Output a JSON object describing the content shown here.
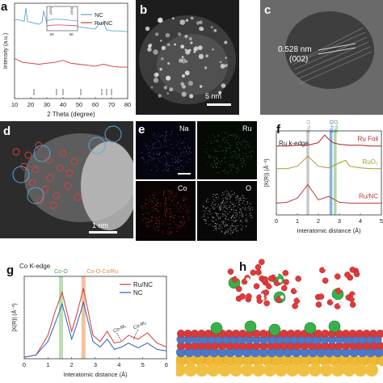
{
  "figure": {
    "labels": {
      "a": "a",
      "b": "b",
      "c": "c",
      "d": "d",
      "e": "e",
      "f": "f",
      "g": "g",
      "h": "h"
    },
    "scalebars": {
      "b": "5 nm",
      "c_spacing": "0.528 nm",
      "c_plane": "(002)",
      "d": "1 nm"
    }
  },
  "map_labels": [
    "Na",
    "Ru",
    "Co",
    "O"
  ],
  "colors": {
    "nc": "#5aa7d8",
    "runc": "#d23a3a",
    "rufoil": "#b01e1e",
    "ruo2": "#a89a2a",
    "runc_f": "#c0393b",
    "band_gray": "#bbbbbb",
    "band_blue": "#6f9fd6",
    "band_green": "#9bd08f",
    "band_orange": "#f4b183"
  },
  "chart_data": [
    {
      "id": "a",
      "type": "line",
      "xlabel": "2 Theta (degree)",
      "ylabel": "Intensity (a.u.)",
      "xlim": [
        10,
        80
      ],
      "xticks": [
        10,
        20,
        30,
        40,
        50,
        60,
        70,
        80
      ],
      "legend_position": "top-right",
      "series": [
        {
          "name": "NC",
          "color": "#5aa7d8",
          "x": [
            10,
            14,
            16,
            17,
            18,
            20,
            25,
            27,
            28,
            30,
            32,
            33,
            35,
            36,
            40,
            45,
            50,
            55,
            60,
            62,
            65,
            67,
            70,
            75,
            80
          ],
          "y": [
            0.83,
            0.82,
            0.81,
            0.95,
            0.81,
            0.8,
            0.78,
            0.8,
            0.92,
            0.79,
            0.86,
            0.79,
            0.87,
            0.78,
            0.76,
            0.8,
            0.75,
            0.74,
            0.73,
            0.78,
            0.8,
            0.72,
            0.71,
            0.71,
            0.7
          ]
        },
        {
          "name": "Ru/NC",
          "color": "#d23a3a",
          "x": [
            10,
            15,
            20,
            25,
            30,
            35,
            40,
            45,
            50,
            55,
            60,
            65,
            70,
            75,
            80
          ],
          "y": [
            0.42,
            0.38,
            0.37,
            0.36,
            0.37,
            0.38,
            0.4,
            0.37,
            0.36,
            0.35,
            0.34,
            0.36,
            0.34,
            0.33,
            0.33
          ]
        }
      ],
      "inset": {
        "labels": [
          "(002)",
          "(004)"
        ],
        "xticks": [
          "20",
          "30"
        ]
      }
    },
    {
      "id": "f",
      "type": "line",
      "title": "Ru k-edge",
      "xlabel": "Interatomic distance (Å)",
      "ylabel": "|X(R)| (Å⁻³)",
      "xlim": [
        0,
        5
      ],
      "xticks": [
        0,
        1,
        2,
        3,
        4,
        5
      ],
      "annotations": [
        "Ru-O",
        "Ru-O-Co",
        "Ru-O-Ru"
      ],
      "series": [
        {
          "name": "Ru Foil",
          "color": "#b01e1e",
          "x": [
            0,
            0.5,
            1,
            1.5,
            2,
            2.3,
            2.5,
            2.7,
            3,
            3.5,
            4,
            4.5,
            5
          ],
          "y": [
            0.82,
            0.82,
            0.83,
            0.83,
            0.86,
            0.95,
            0.9,
            0.86,
            0.84,
            0.83,
            0.83,
            0.82,
            0.82
          ]
        },
        {
          "name": "RuO₂",
          "color": "#a89a2a",
          "x": [
            0,
            0.5,
            1,
            1.5,
            2,
            2.5,
            3,
            3.3,
            3.5,
            4,
            4.5,
            5
          ],
          "y": [
            0.55,
            0.55,
            0.58,
            0.7,
            0.58,
            0.56,
            0.62,
            0.65,
            0.58,
            0.56,
            0.55,
            0.55
          ]
        },
        {
          "name": "Ru/NC",
          "color": "#c0393b",
          "x": [
            0,
            0.5,
            1,
            1.5,
            2,
            2.5,
            3,
            3.5,
            4,
            4.5,
            5
          ],
          "y": [
            0.14,
            0.15,
            0.2,
            0.36,
            0.18,
            0.22,
            0.15,
            0.14,
            0.14,
            0.14,
            0.14
          ]
        }
      ]
    },
    {
      "id": "g",
      "type": "line",
      "title": "Co K-edge",
      "xlabel": "Interatomic distance (Å)",
      "ylabel": "|X(R)| (Å⁻³)",
      "xlim": [
        0,
        6
      ],
      "xticks": [
        0,
        1,
        2,
        3,
        4,
        5,
        6
      ],
      "legend_position": "top-right",
      "annotations": [
        "Co-O",
        "Co-O-Co/Ru",
        "Co-M₁",
        "Co-M₂"
      ],
      "series": [
        {
          "name": "Ru/NC",
          "color": "#d23a3a",
          "x": [
            0,
            0.5,
            1,
            1.3,
            1.6,
            2,
            2.2,
            2.5,
            2.9,
            3.2,
            3.5,
            3.8,
            4.1,
            4.4,
            4.8,
            5.2,
            5.6,
            6
          ],
          "y": [
            0.02,
            0.05,
            0.3,
            0.6,
            0.85,
            0.35,
            0.55,
            0.9,
            0.3,
            0.22,
            0.35,
            0.2,
            0.22,
            0.3,
            0.25,
            0.33,
            0.2,
            0.15
          ]
        },
        {
          "name": "NC",
          "color": "#2a60b8",
          "x": [
            0,
            0.5,
            1,
            1.3,
            1.6,
            2,
            2.2,
            2.5,
            2.9,
            3.2,
            3.5,
            3.8,
            4.1,
            4.4,
            4.8,
            5.2,
            5.6,
            6
          ],
          "y": [
            0.02,
            0.05,
            0.22,
            0.45,
            0.7,
            0.25,
            0.42,
            0.72,
            0.22,
            0.15,
            0.25,
            0.12,
            0.15,
            0.2,
            0.14,
            0.2,
            0.12,
            0.1
          ]
        }
      ]
    }
  ]
}
